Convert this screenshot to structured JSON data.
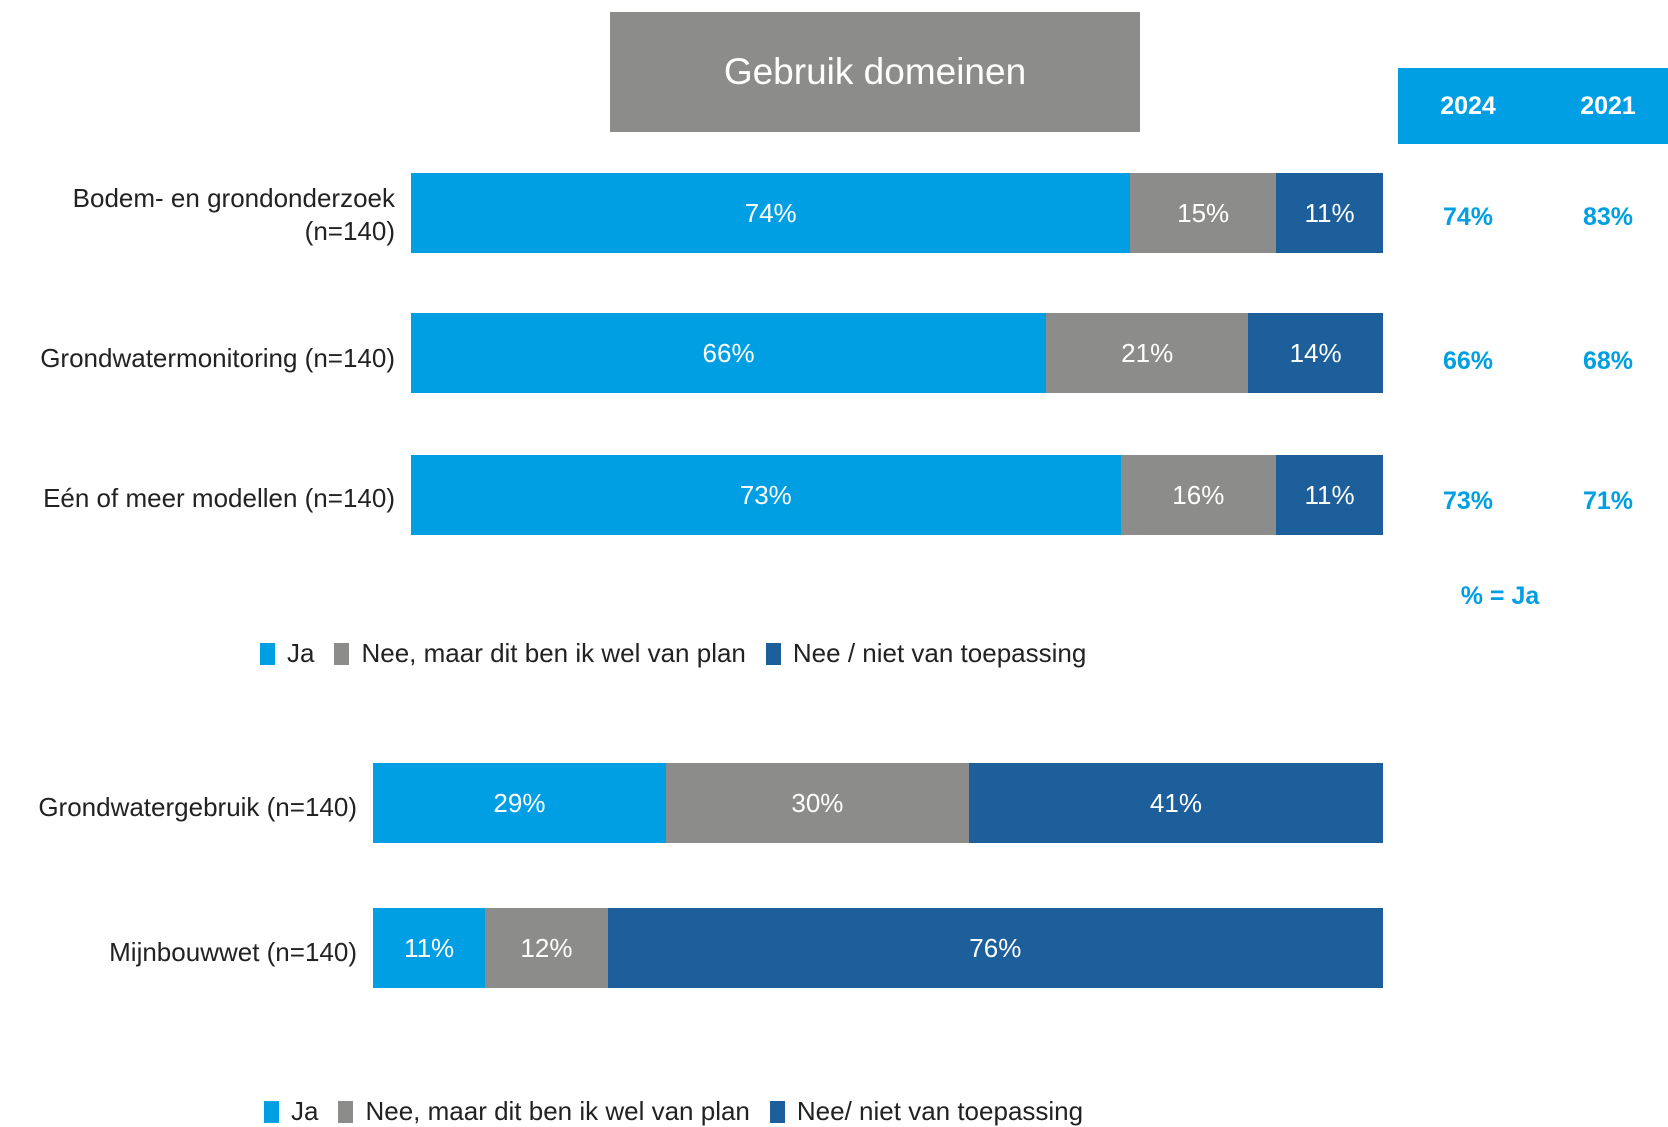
{
  "title": "Gebruik domeinen",
  "colors": {
    "ja": "#009fe3",
    "plan": "#8c8c8a",
    "nee": "#1c5f9b"
  },
  "comparison": {
    "headers": [
      "2024",
      "2021"
    ],
    "rows": [
      [
        "74%",
        "83%"
      ],
      [
        "66%",
        "68%"
      ],
      [
        "73%",
        "71%"
      ]
    ],
    "note": "% = Ja"
  },
  "legend_top": [
    "Ja",
    "Nee, maar dit ben ik wel van plan",
    "Nee / niet van toepassing"
  ],
  "legend_bottom": [
    "Ja",
    "Nee, maar dit ben ik wel van plan",
    "Nee/ niet van toepassing"
  ],
  "chart_data": [
    {
      "type": "bar",
      "orientation": "horizontal",
      "stacked": true,
      "categories": [
        "Bodem- en grondonderzoek (n=140)",
        "Grondwatermonitoring (n=140)",
        "Eén of meer modellen (n=140)"
      ],
      "series": [
        {
          "name": "Ja",
          "values": [
            74,
            66,
            73
          ],
          "labels": [
            "74%",
            "66%",
            "73%"
          ]
        },
        {
          "name": "Nee, maar dit ben ik wel van plan",
          "values": [
            15,
            21,
            16
          ],
          "labels": [
            "15%",
            "21%",
            "16%"
          ]
        },
        {
          "name": "Nee / niet van toepassing",
          "values": [
            11,
            14,
            11
          ],
          "labels": [
            "11%",
            "14%",
            "11%"
          ]
        }
      ],
      "xlim": [
        0,
        100
      ]
    },
    {
      "type": "bar",
      "orientation": "horizontal",
      "stacked": true,
      "categories": [
        "Grondwatergebruik (n=140)",
        "Mijnbouwwet (n=140)"
      ],
      "series": [
        {
          "name": "Ja",
          "values": [
            29,
            11
          ],
          "labels": [
            "29%",
            "11%"
          ]
        },
        {
          "name": "Nee, maar dit ben ik wel van plan",
          "values": [
            30,
            12
          ],
          "labels": [
            "30%",
            "12%"
          ]
        },
        {
          "name": "Nee/ niet van toepassing",
          "values": [
            41,
            76
          ],
          "labels": [
            "41%",
            "76%"
          ]
        }
      ],
      "xlim": [
        0,
        100
      ]
    }
  ]
}
